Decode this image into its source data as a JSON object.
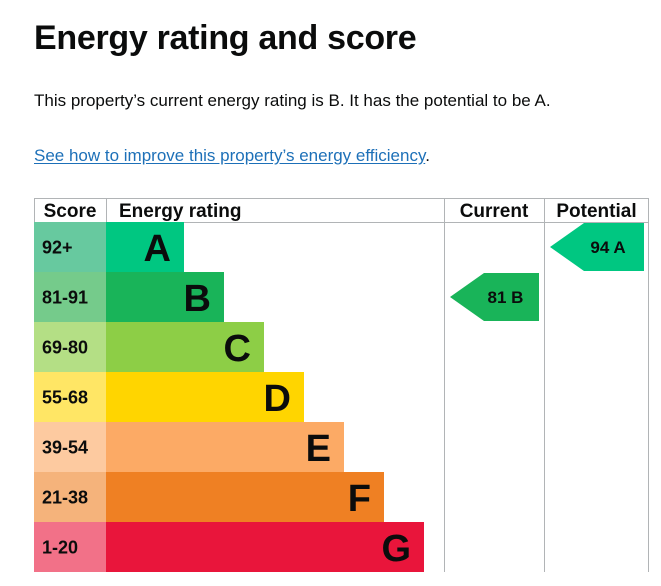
{
  "heading": "Energy rating and score",
  "summary": "This property’s current energy rating is B. It has the potential to be A.",
  "improve_link": "See how to improve this property’s energy efficiency",
  "improve_suffix": ".",
  "chart_data": {
    "type": "table",
    "columns": [
      "Score",
      "Energy rating",
      "Current",
      "Potential"
    ],
    "bands": [
      {
        "score": "92+",
        "letter": "A",
        "color": "#00c781",
        "score_color": "#67c99f"
      },
      {
        "score": "81-91",
        "letter": "B",
        "color": "#19b459",
        "score_color": "#75cb8b"
      },
      {
        "score": "69-80",
        "letter": "C",
        "color": "#8dce46",
        "score_color": "#b4df85"
      },
      {
        "score": "55-68",
        "letter": "D",
        "color": "#ffd500",
        "score_color": "#ffe665"
      },
      {
        "score": "39-54",
        "letter": "E",
        "color": "#fcaa65",
        "score_color": "#fdcaa0"
      },
      {
        "score": "21-38",
        "letter": "F",
        "color": "#ef8023",
        "score_color": "#f5b37b"
      },
      {
        "score": "1-20",
        "letter": "G",
        "color": "#e9153b",
        "score_color": "#f27188"
      }
    ],
    "current": {
      "value": 81,
      "letter": "B",
      "label": "81 B",
      "color": "#19b459"
    },
    "potential": {
      "value": 94,
      "letter": "A",
      "label": "94 A",
      "color": "#00c781"
    }
  }
}
